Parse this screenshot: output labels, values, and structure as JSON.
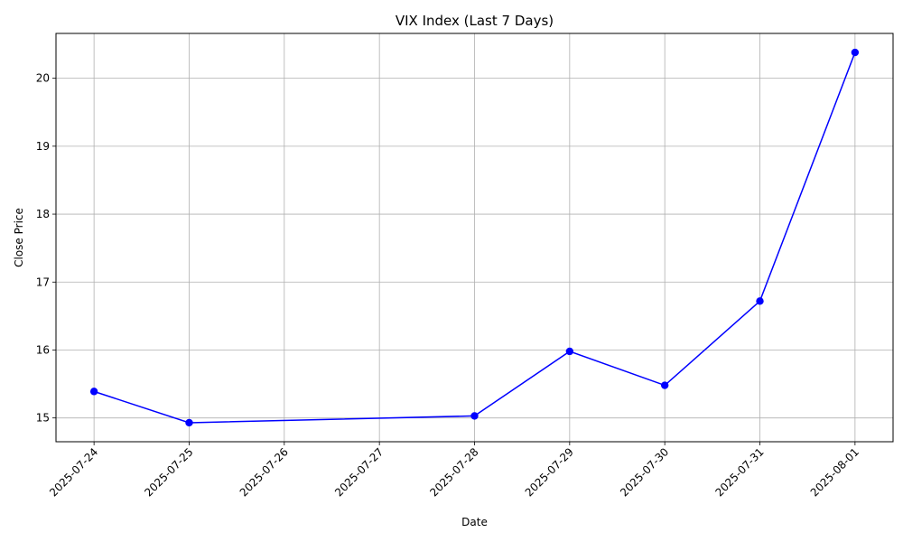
{
  "chart_data": {
    "type": "line",
    "title": "VIX Index (Last 7 Days)",
    "xlabel": "Date",
    "ylabel": "Close Price",
    "x_ticks": [
      "2025-07-24",
      "2025-07-25",
      "2025-07-26",
      "2025-07-27",
      "2025-07-28",
      "2025-07-29",
      "2025-07-30",
      "2025-07-31",
      "2025-08-01"
    ],
    "y_ticks": [
      15,
      16,
      17,
      18,
      19,
      20
    ],
    "xlim": [
      "2025-07-23.6",
      "2025-08-01.4"
    ],
    "ylim": [
      14.65,
      20.66
    ],
    "grid": true,
    "x_tick_rotation": 45,
    "series": [
      {
        "color": "#0000ff",
        "marker": "circle",
        "points": [
          {
            "x": "2025-07-24",
            "y": 15.39
          },
          {
            "x": "2025-07-25",
            "y": 14.93
          },
          {
            "x": "2025-07-28",
            "y": 15.03
          },
          {
            "x": "2025-07-29",
            "y": 15.98
          },
          {
            "x": "2025-07-30",
            "y": 15.48
          },
          {
            "x": "2025-07-31",
            "y": 16.72
          },
          {
            "x": "2025-08-01",
            "y": 20.38
          }
        ]
      }
    ]
  }
}
